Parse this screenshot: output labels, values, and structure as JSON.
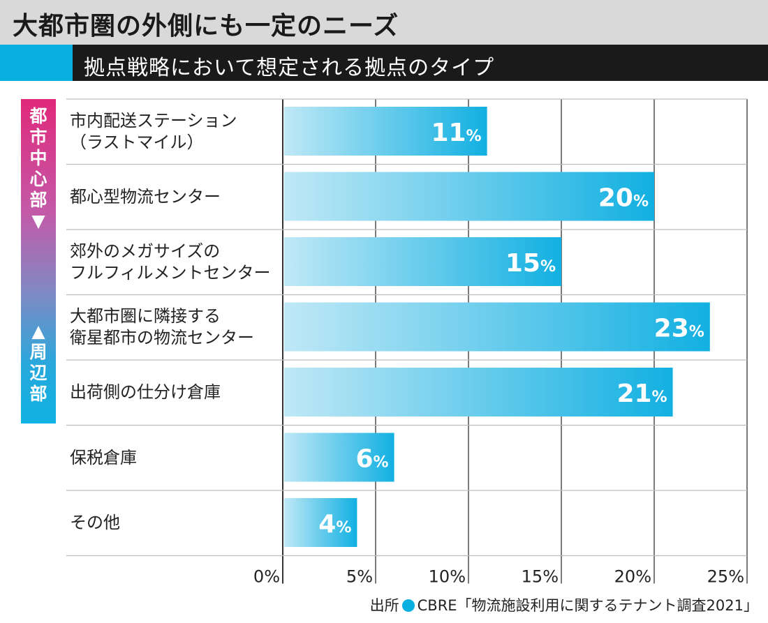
{
  "title": "大都市圏の外側にも一定のニーズ",
  "subtitle": "拠点戦略において想定される拠点のタイプ",
  "side_label_top": "都\n市\n中\n心\n部\n▼",
  "side_label_bottom": "▲\n周\n辺\n部",
  "source": {
    "prefix": "出所",
    "text": "CBRE「物流施設利用に関するテナント調査2021」"
  },
  "colors": {
    "accent": "#0ab0e0",
    "bar_light": "#bfe8f6",
    "bar_dark": "#12b0e2",
    "header_dark": "#1a1a1a",
    "header_gray": "#d9d9d9"
  },
  "chart_data": {
    "type": "bar",
    "orientation": "horizontal",
    "categories": [
      "市内配送ステーション\n（ラストマイル）",
      "都心型物流センター",
      "郊外のメガサイズの\nフルフィルメントセンター",
      "大都市圏に隣接する\n衛星都市の物流センター",
      "出荷側の仕分け倉庫",
      "保税倉庫",
      "その他"
    ],
    "values": [
      11,
      20,
      15,
      23,
      21,
      6,
      4
    ],
    "data_labels": [
      "11",
      "20",
      "15",
      "23",
      "21",
      "6",
      "4"
    ],
    "unit": "%",
    "xlim": [
      0,
      25
    ],
    "xticks": [
      "0%",
      "5%",
      "10%",
      "15%",
      "20%",
      "25%"
    ],
    "grid": true
  }
}
